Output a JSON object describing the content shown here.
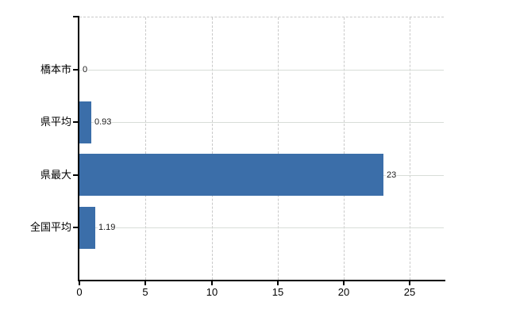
{
  "chart_data": {
    "type": "bar",
    "orientation": "horizontal",
    "title": "",
    "xlabel": "",
    "ylabel": "",
    "categories": [
      "橋本市",
      "県平均",
      "県最大",
      "全国平均"
    ],
    "values": [
      0,
      0.93,
      23,
      1.19
    ],
    "value_labels": [
      "0",
      "0.93",
      "23",
      "1.19"
    ],
    "x_ticks": [
      0,
      5,
      10,
      15,
      20,
      25
    ],
    "x_tick_labels": [
      "0",
      "5",
      "10",
      "15",
      "20",
      "25"
    ],
    "xlim": [
      0,
      27.5
    ],
    "legend": "none",
    "grid": {
      "horizontal": "solid",
      "vertical": "dashed",
      "top_border": "dashed"
    },
    "colors": {
      "bar": "#3B6EA9",
      "axis": "#000000",
      "gridline_horizontal": "#d8ddd8",
      "gridline_vertical": "#c9c9c9",
      "text": "#000000",
      "background": "#ffffff"
    }
  }
}
